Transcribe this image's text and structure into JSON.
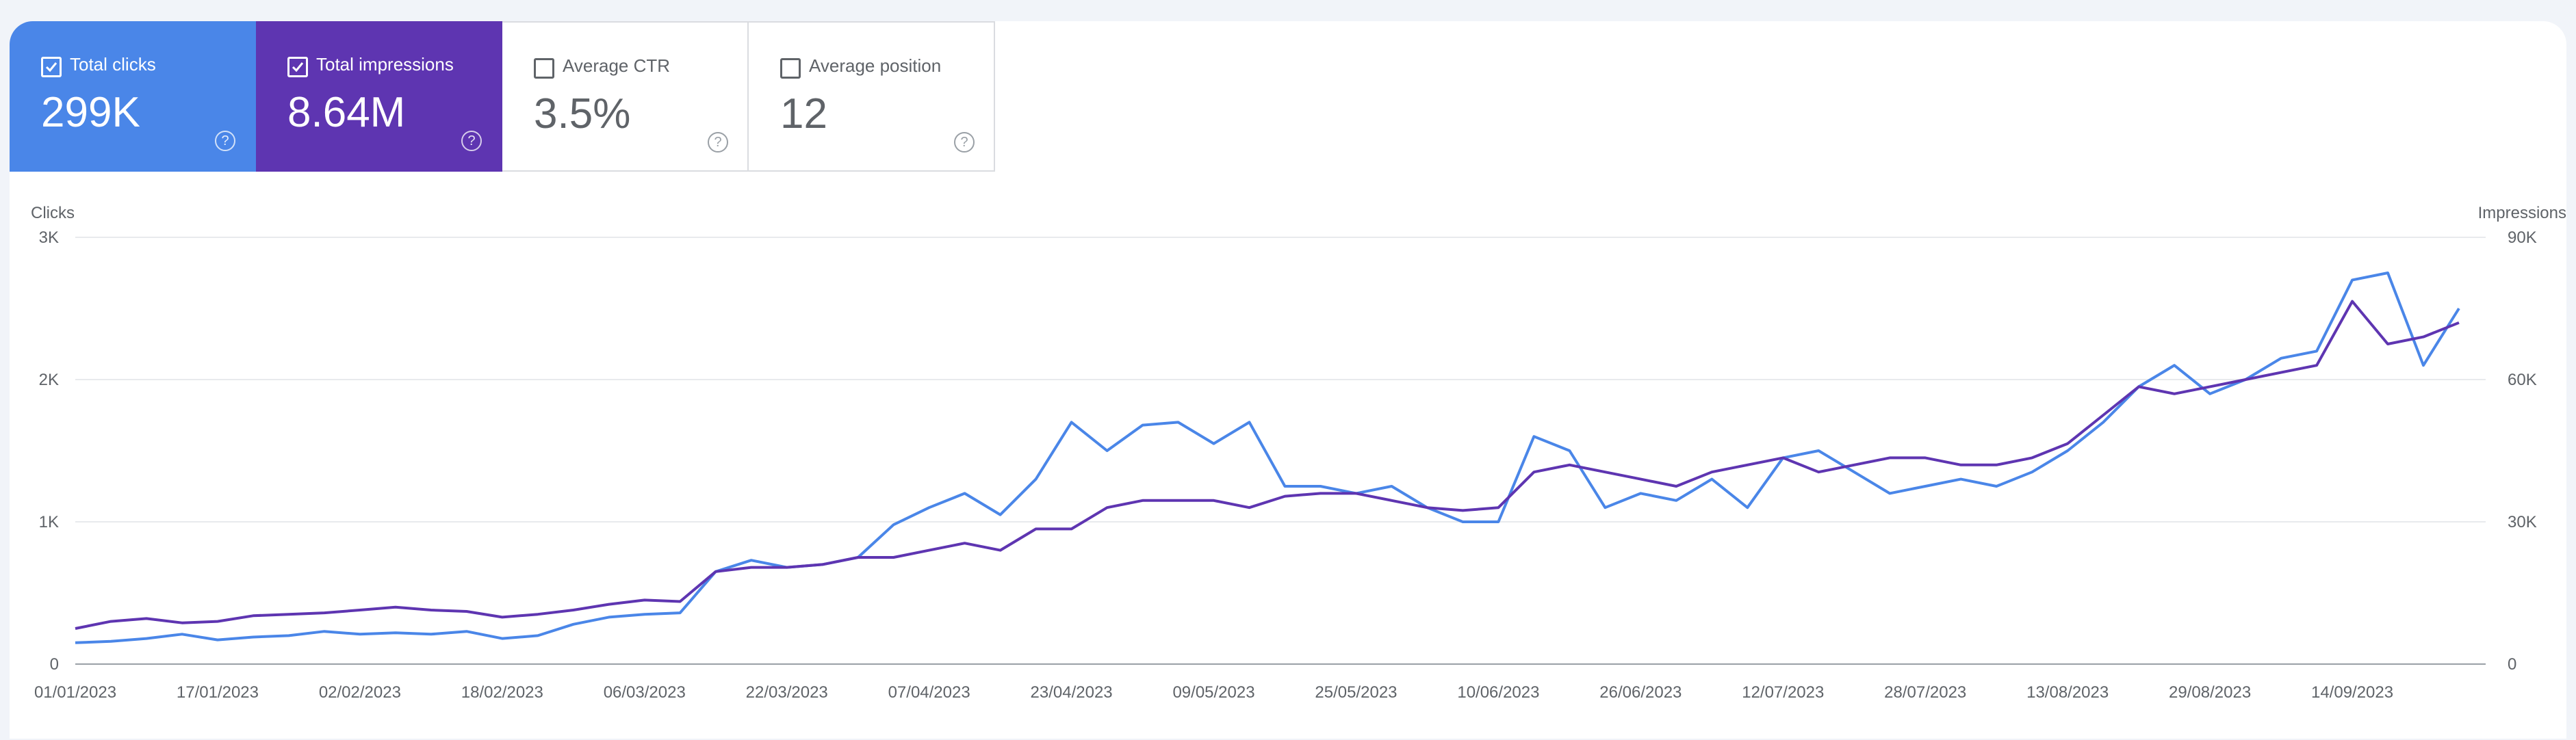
{
  "metrics": [
    {
      "label": "Total clicks",
      "value": "299K",
      "checked": true,
      "color": "#4a86e8"
    },
    {
      "label": "Total impressions",
      "value": "8.64M",
      "checked": true,
      "color": "#5e35b1"
    },
    {
      "label": "Average CTR",
      "value": "3.5%",
      "checked": false,
      "color": "#ffffff"
    },
    {
      "label": "Average position",
      "value": "12",
      "checked": false,
      "color": "#ffffff"
    }
  ],
  "help_glyph": "?",
  "chart_data": {
    "type": "line",
    "ylabel_left": "Clicks",
    "ylabel_right": "Impressions",
    "yticks_left": [
      "0",
      "1K",
      "2K",
      "3K"
    ],
    "yticks_right": [
      "0",
      "30K",
      "60K",
      "90K"
    ],
    "ylim_left": [
      0,
      3000
    ],
    "ylim_right": [
      0,
      90000
    ],
    "grid": true,
    "x_tick_labels": [
      "01/01/2023",
      "17/01/2023",
      "02/02/2023",
      "18/02/2023",
      "06/03/2023",
      "22/03/2023",
      "07/04/2023",
      "23/04/2023",
      "09/05/2023",
      "25/05/2023",
      "10/06/2023",
      "26/06/2023",
      "12/07/2023",
      "28/07/2023",
      "13/08/2023",
      "29/08/2023",
      "14/09/2023"
    ],
    "series": [
      {
        "name": "Clicks",
        "axis": "left",
        "color": "#4a86e8",
        "x": [
          "01/01/2023",
          "05/01/2023",
          "09/01/2023",
          "13/01/2023",
          "17/01/2023",
          "21/01/2023",
          "25/01/2023",
          "29/01/2023",
          "02/02/2023",
          "06/02/2023",
          "10/02/2023",
          "14/02/2023",
          "18/02/2023",
          "22/02/2023",
          "26/02/2023",
          "02/03/2023",
          "06/03/2023",
          "10/03/2023",
          "14/03/2023",
          "18/03/2023",
          "22/03/2023",
          "26/03/2023",
          "30/03/2023",
          "03/04/2023",
          "07/04/2023",
          "11/04/2023",
          "15/04/2023",
          "19/04/2023",
          "23/04/2023",
          "27/04/2023",
          "01/05/2023",
          "05/05/2023",
          "09/05/2023",
          "13/05/2023",
          "17/05/2023",
          "21/05/2023",
          "25/05/2023",
          "29/05/2023",
          "02/06/2023",
          "06/06/2023",
          "10/06/2023",
          "14/06/2023",
          "18/06/2023",
          "22/06/2023",
          "26/06/2023",
          "30/06/2023",
          "04/07/2023",
          "08/07/2023",
          "12/07/2023",
          "16/07/2023",
          "20/07/2023",
          "24/07/2023",
          "28/07/2023",
          "01/08/2023",
          "05/08/2023",
          "09/08/2023",
          "13/08/2023",
          "17/08/2023",
          "21/08/2023",
          "25/08/2023",
          "29/08/2023",
          "02/09/2023",
          "06/09/2023",
          "10/09/2023",
          "14/09/2023",
          "18/09/2023",
          "22/09/2023",
          "26/09/2023"
        ],
        "values": [
          150,
          160,
          180,
          210,
          170,
          190,
          200,
          230,
          210,
          220,
          210,
          230,
          180,
          200,
          280,
          330,
          350,
          360,
          650,
          730,
          680,
          700,
          750,
          980,
          1100,
          1200,
          1050,
          1300,
          1700,
          1500,
          1680,
          1700,
          1550,
          1700,
          1250,
          1250,
          1200,
          1250,
          1100,
          1000,
          1000,
          1600,
          1500,
          1100,
          1200,
          1150,
          1300,
          1100,
          1450,
          1500,
          1350,
          1200,
          1250,
          1300,
          1250,
          1350,
          1500,
          1700,
          1950,
          2100,
          1900,
          2000,
          2150,
          2200,
          2700,
          2750,
          2100,
          2500
        ]
      },
      {
        "name": "Impressions",
        "axis": "right",
        "color": "#5e35b1",
        "x": [
          "01/01/2023",
          "05/01/2023",
          "09/01/2023",
          "13/01/2023",
          "17/01/2023",
          "21/01/2023",
          "25/01/2023",
          "29/01/2023",
          "02/02/2023",
          "06/02/2023",
          "10/02/2023",
          "14/02/2023",
          "18/02/2023",
          "22/02/2023",
          "26/02/2023",
          "02/03/2023",
          "06/03/2023",
          "10/03/2023",
          "14/03/2023",
          "18/03/2023",
          "22/03/2023",
          "26/03/2023",
          "30/03/2023",
          "03/04/2023",
          "07/04/2023",
          "11/04/2023",
          "15/04/2023",
          "19/04/2023",
          "23/04/2023",
          "27/04/2023",
          "01/05/2023",
          "05/05/2023",
          "09/05/2023",
          "13/05/2023",
          "17/05/2023",
          "21/05/2023",
          "25/05/2023",
          "29/05/2023",
          "02/06/2023",
          "06/06/2023",
          "10/06/2023",
          "14/06/2023",
          "18/06/2023",
          "22/06/2023",
          "26/06/2023",
          "30/06/2023",
          "04/07/2023",
          "08/07/2023",
          "12/07/2023",
          "16/07/2023",
          "20/07/2023",
          "24/07/2023",
          "28/07/2023",
          "01/08/2023",
          "05/08/2023",
          "09/08/2023",
          "13/08/2023",
          "17/08/2023",
          "21/08/2023",
          "25/08/2023",
          "29/08/2023",
          "02/09/2023",
          "06/09/2023",
          "10/09/2023",
          "14/09/2023",
          "18/09/2023",
          "22/09/2023",
          "26/09/2023"
        ],
        "values": [
          7500,
          9000,
          9600,
          8700,
          9000,
          10200,
          10500,
          10800,
          11400,
          12000,
          11400,
          11100,
          9900,
          10500,
          11400,
          12600,
          13500,
          13200,
          19500,
          20400,
          20400,
          21000,
          22500,
          22500,
          24000,
          25500,
          24000,
          28500,
          28500,
          33000,
          34500,
          34500,
          34500,
          33000,
          35400,
          36000,
          36000,
          34500,
          33000,
          32400,
          33000,
          40500,
          42000,
          40500,
          39000,
          37500,
          40500,
          42000,
          43500,
          40500,
          42000,
          43500,
          43500,
          42000,
          42000,
          43500,
          46500,
          52500,
          58500,
          57000,
          58500,
          60000,
          61500,
          63000,
          76500,
          67500,
          69000,
          72000
        ]
      }
    ]
  }
}
